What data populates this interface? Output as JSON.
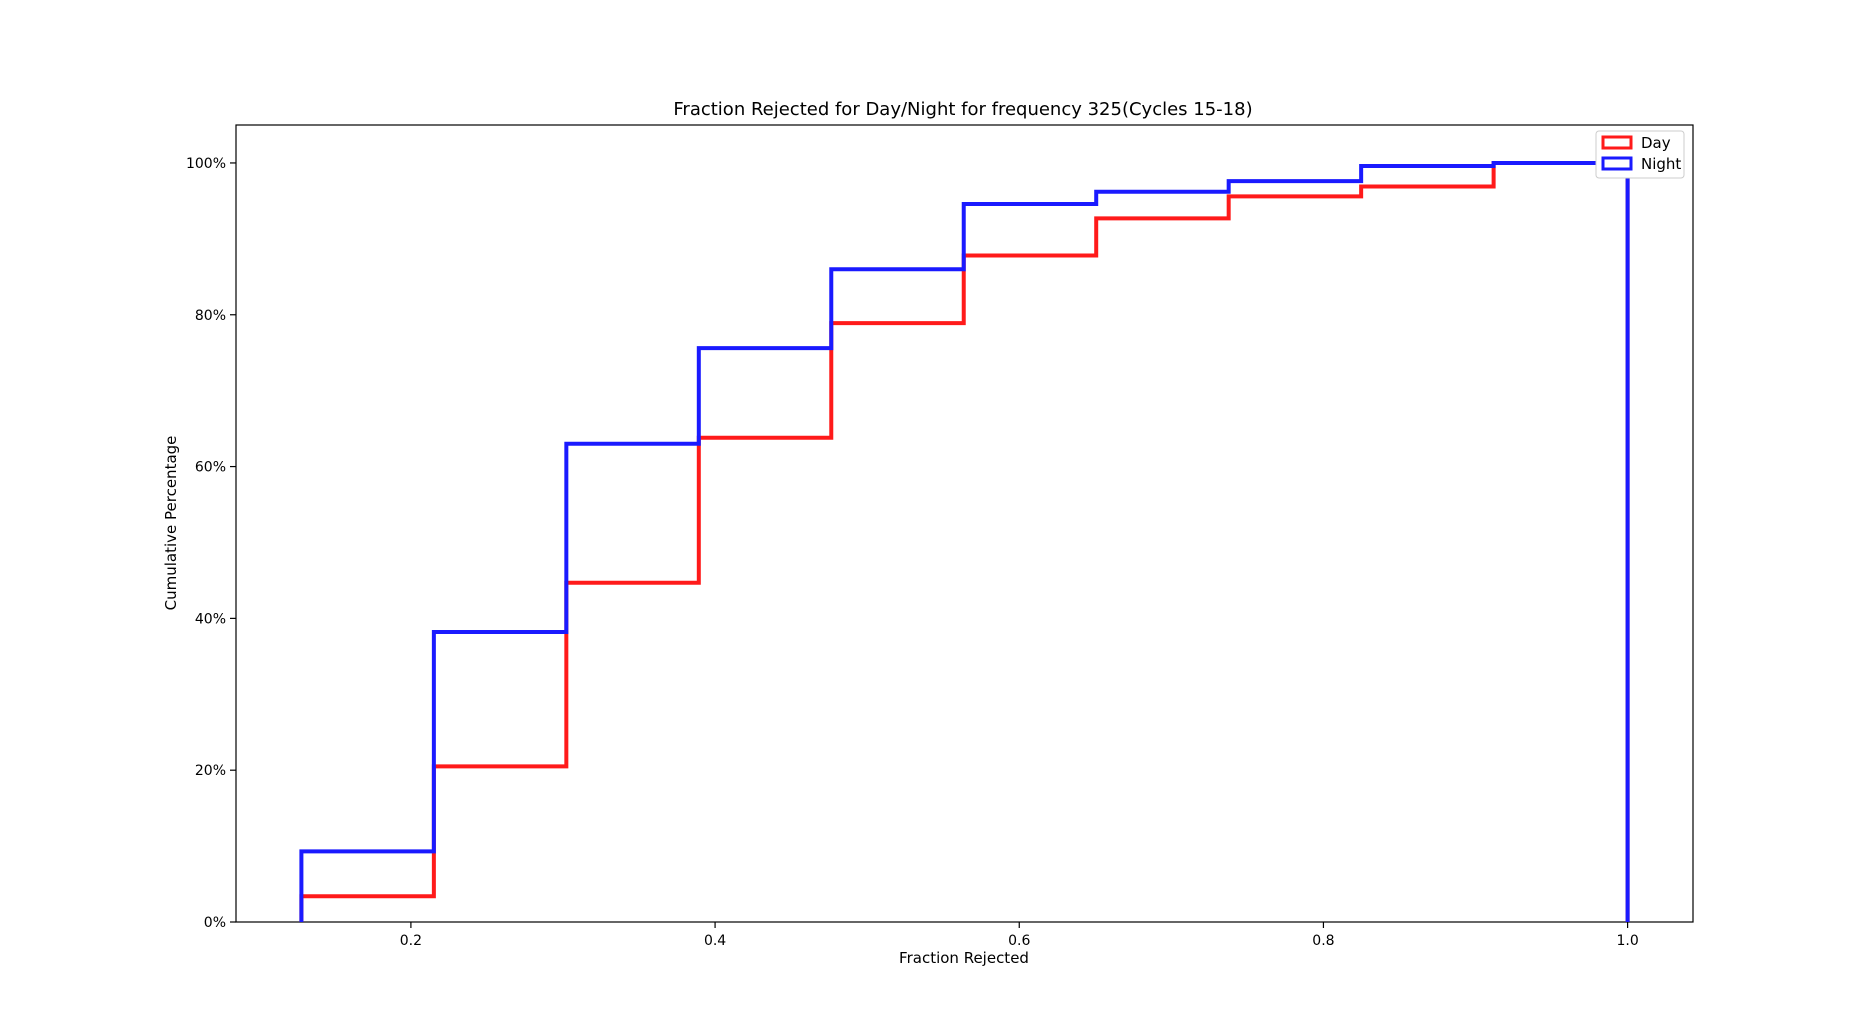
{
  "chart_data": {
    "type": "line",
    "title": "Fraction Rejected for Day/Night for frequency 325(Cycles 15-18)",
    "xlabel": "Fraction Rejected",
    "ylabel": "Cumulative Percentage",
    "xlim": [
      0.085,
      1.043
    ],
    "ylim": [
      0,
      105
    ],
    "xticks": [
      0.2,
      0.4,
      0.6,
      0.8,
      1.0
    ],
    "xtick_labels": [
      "0.2",
      "0.4",
      "0.6",
      "0.8",
      "1.0"
    ],
    "yticks": [
      0,
      20,
      40,
      60,
      80,
      100
    ],
    "ytick_labels": [
      "0%",
      "20%",
      "40%",
      "60%",
      "80%",
      "100%"
    ],
    "grid": false,
    "legend_position": "top-right",
    "bin_edges": [
      0.128,
      0.2151,
      0.3022,
      0.3893,
      0.4764,
      0.5635,
      0.6506,
      0.7377,
      0.8248,
      0.9119,
      1.0
    ],
    "series": [
      {
        "name": "Day",
        "color": "#ff1a1a",
        "values": [
          3.4,
          20.5,
          44.7,
          63.8,
          78.9,
          87.8,
          92.7,
          95.6,
          96.9,
          100.0
        ]
      },
      {
        "name": "Night",
        "color": "#1a1aff",
        "values": [
          9.3,
          38.2,
          63.0,
          75.6,
          86.0,
          94.6,
          96.2,
          97.6,
          99.6,
          100.0
        ]
      }
    ]
  }
}
